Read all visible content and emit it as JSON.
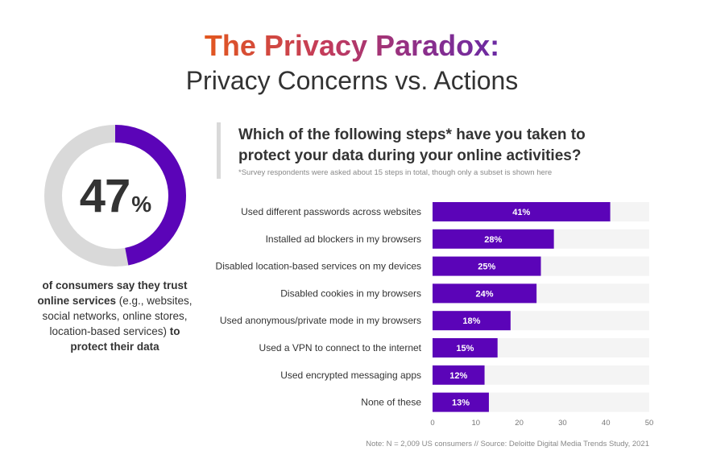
{
  "title": {
    "line1": "The Privacy Paradox:",
    "line2": "Privacy Concerns vs. Actions"
  },
  "headline_stat": {
    "number": "47",
    "symbol": "%",
    "value": 47,
    "desc_bold_1": "of consumers say they trust online services",
    "desc_normal": " (e.g., websites, social networks, online stores, location-based services) ",
    "desc_bold_2": "to protect their data"
  },
  "question": {
    "text": "Which of the following steps* have you taken to protect your data during your online activities?",
    "note": "*Survey respondents were asked about 15 steps in total, though only a subset is shown here"
  },
  "footnote": "Note: N = 2,009 US consumers // Source: Deloitte Digital Media Trends Study, 2021",
  "colors": {
    "bar": "#5b04b8",
    "track": "#f4f4f4",
    "donut_track": "#d9d9d9",
    "donut_fill": "#5b04b8"
  },
  "chart_data": {
    "type": "bar",
    "orientation": "horizontal",
    "categories": [
      "Used different passwords across websites",
      "Installed ad blockers in my browsers",
      "Disabled location-based services on my devices",
      "Disabled cookies in my browsers",
      "Used anonymous/private mode in my browsers",
      "Used a VPN to connect to the internet",
      "Used encrypted messaging apps",
      "None of these"
    ],
    "values": [
      41,
      28,
      25,
      24,
      18,
      15,
      12,
      13
    ],
    "value_labels": [
      "41%",
      "28%",
      "25%",
      "24%",
      "18%",
      "15%",
      "12%",
      "13%"
    ],
    "xlim": [
      0,
      50
    ],
    "xticks": [
      0,
      10,
      20,
      30,
      40,
      50
    ],
    "grid": false
  }
}
